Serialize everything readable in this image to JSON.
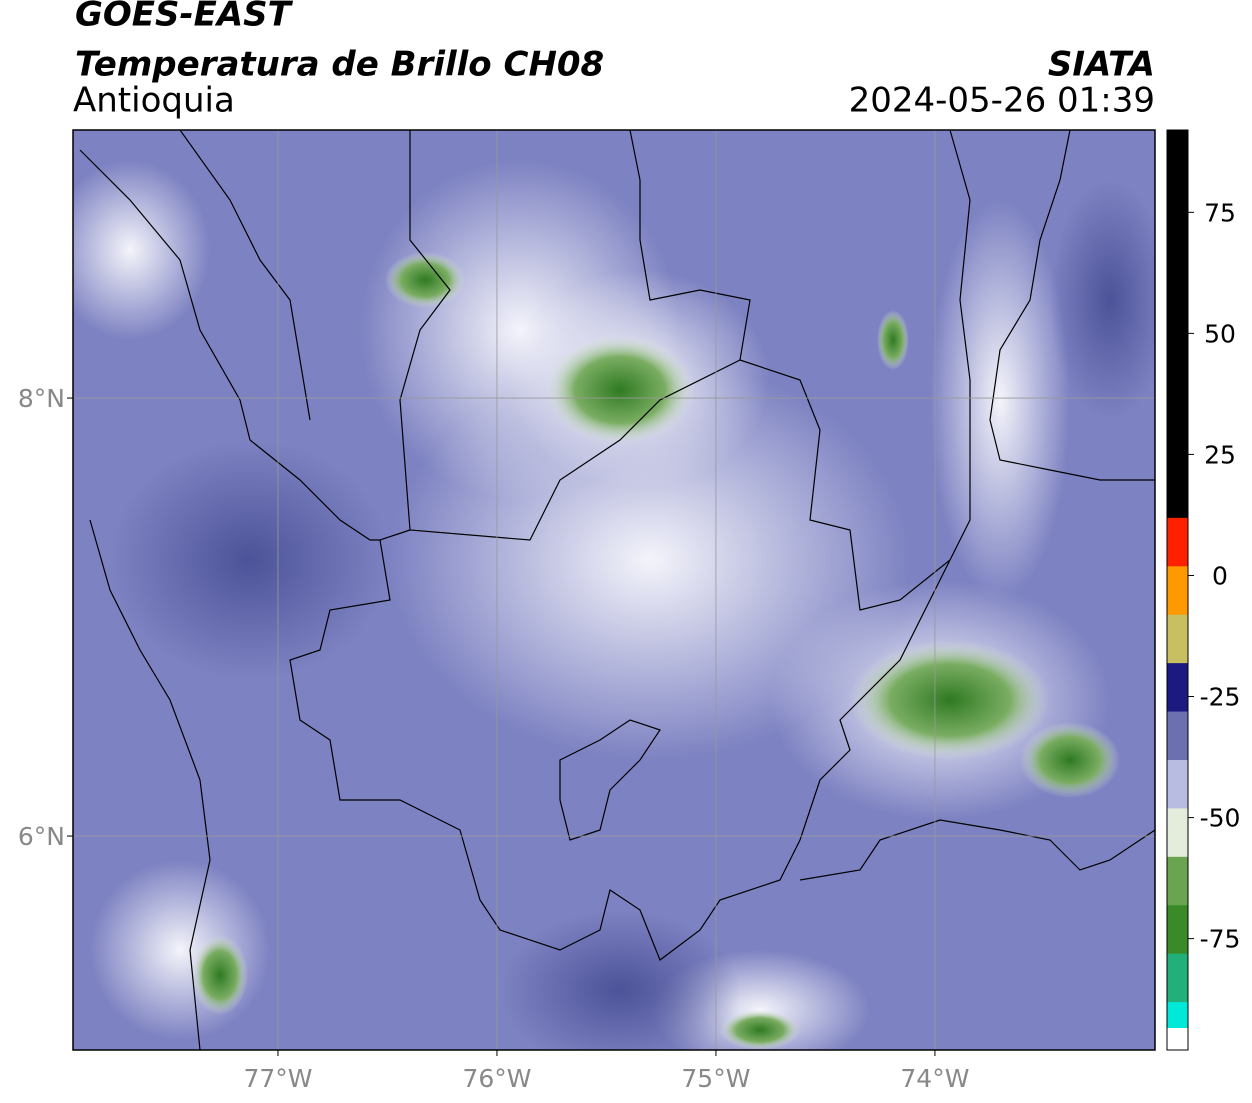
{
  "map": {
    "title": "GOES-EAST",
    "subtitle": "Temperatura de Brillo CH08",
    "region": "Antioquia",
    "source": "SIATA",
    "datetime": "2024-05-26 01:39",
    "lonlim": [
      -77.936,
      -72.995
    ],
    "latlim": [
      5.023,
      9.224
    ],
    "lonticks": [
      {
        "value": -77,
        "label": "77°W"
      },
      {
        "value": -76,
        "label": "76°W"
      },
      {
        "value": -75,
        "label": "75°W"
      },
      {
        "value": -74,
        "label": "74°W"
      }
    ],
    "latticks": [
      {
        "value": 8,
        "label": "8°N"
      },
      {
        "value": 6,
        "label": "6°N"
      }
    ],
    "grid": true,
    "colorbar": {
      "lim": [
        -98,
        92
      ],
      "ticks": [
        75,
        50,
        25,
        0,
        -25,
        -50,
        -75
      ],
      "colors": [
        "#00e8d8",
        "#22b07a",
        "#3a8a2a",
        "#6aa450",
        "#e4ecdc",
        "#b8bce0",
        "#6a70b0",
        "#1a1a80",
        "#c8c060",
        "#ff9900",
        "#ff2000",
        "#000000",
        "#000000",
        "#000000",
        "#000000",
        "#000000",
        "#000000",
        "#000000",
        "#000000"
      ]
    }
  }
}
